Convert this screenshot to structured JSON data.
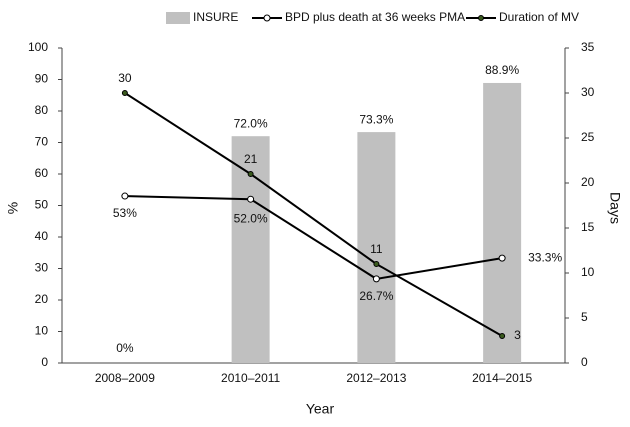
{
  "chart_data": {
    "type": "bar",
    "categories": [
      "2008–2009",
      "2010–2011",
      "2012–2013",
      "2014–2015"
    ],
    "series": [
      {
        "name": "INSURE",
        "type": "bar",
        "color": "#c0c0c0",
        "values": [
          0,
          72.0,
          73.3,
          88.9
        ],
        "value_labels": [
          "0%",
          "72.0%",
          "73.3%",
          "88.9%"
        ]
      },
      {
        "name": "BPD plus death at 36 weeks PMA",
        "type": "line",
        "color": "#000000",
        "marker_color": "#ffffff",
        "values": [
          53,
          52.0,
          26.7,
          33.3
        ],
        "value_labels": [
          "53%",
          "52.0%",
          "26.7%",
          "33.3%"
        ]
      },
      {
        "name": "Duration of MV",
        "type": "line",
        "axis": "y2",
        "color": "#000000",
        "marker_color": "#3a5a1e",
        "values": [
          30,
          21,
          11,
          3
        ]
      }
    ],
    "ylim": [
      0,
      100
    ],
    "yticks": [
      0,
      10,
      20,
      30,
      40,
      50,
      60,
      70,
      80,
      90,
      100
    ],
    "y2lim": [
      0,
      35
    ],
    "y2ticks": [
      0,
      5,
      10,
      15,
      20,
      25,
      30,
      35
    ],
    "xlabel": "Year",
    "ylabel": "%",
    "y2label": "Days",
    "legend": "top"
  }
}
